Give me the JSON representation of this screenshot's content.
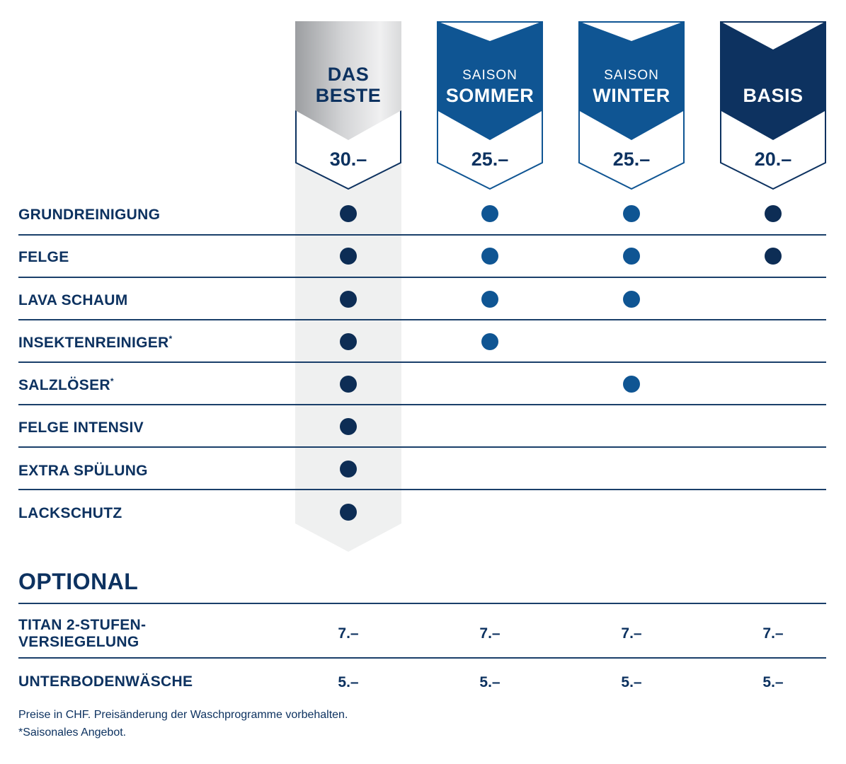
{
  "packages": [
    {
      "id": "das-beste",
      "line1": "DAS",
      "line2": "BESTE",
      "price": "30.–"
    },
    {
      "id": "sommer",
      "season_label": "SAISON",
      "name": "SOMMER",
      "price": "25.–"
    },
    {
      "id": "winter",
      "season_label": "SAISON",
      "name": "WINTER",
      "price": "25.–"
    },
    {
      "id": "basis",
      "name": "BASIS",
      "price": "20.–"
    }
  ],
  "features": [
    {
      "label": "GRUNDREINIGUNG",
      "asterisk": "",
      "included": [
        true,
        true,
        true,
        true
      ]
    },
    {
      "label": "FELGE",
      "asterisk": "",
      "included": [
        true,
        true,
        true,
        true
      ]
    },
    {
      "label": "LAVA SCHAUM",
      "asterisk": "",
      "included": [
        true,
        true,
        true,
        false
      ]
    },
    {
      "label": "INSEKTENREINIGER",
      "asterisk": "*",
      "included": [
        true,
        true,
        false,
        false
      ]
    },
    {
      "label": "SALZLÖSER",
      "asterisk": "*",
      "included": [
        true,
        false,
        true,
        false
      ]
    },
    {
      "label": "FELGE INTENSIV",
      "asterisk": "",
      "included": [
        true,
        false,
        false,
        false
      ]
    },
    {
      "label": "EXTRA SPÜLUNG",
      "asterisk": "",
      "included": [
        true,
        false,
        false,
        false
      ]
    },
    {
      "label": "LACKSCHUTZ",
      "asterisk": "",
      "included": [
        true,
        false,
        false,
        false
      ]
    }
  ],
  "optional": {
    "title": "OPTIONAL",
    "items": [
      {
        "label_line1": "TITAN 2-STUFEN-",
        "label_line2": "VERSIEGELUNG",
        "prices": [
          "7.–",
          "7.–",
          "7.–",
          "7.–"
        ]
      },
      {
        "label_line1": "UNTERBODENWÄSCHE",
        "label_line2": "",
        "prices": [
          "5.–",
          "5.–",
          "5.–",
          "5.–"
        ]
      }
    ]
  },
  "footnotes": {
    "line1": "Preise in CHF. Preisänderung der Waschprogramme vorbehalten.",
    "line2": "*Saisonales Angebot."
  },
  "colors": {
    "navy_text": "#0d3260",
    "dot_dark": "#0d2d55",
    "dot_blue": "#0f5593",
    "season_blue": "#0f5593",
    "basis_navy": "#0d3260",
    "silver": "#c6c7c9",
    "best_column_bg": "#eff0f0"
  }
}
